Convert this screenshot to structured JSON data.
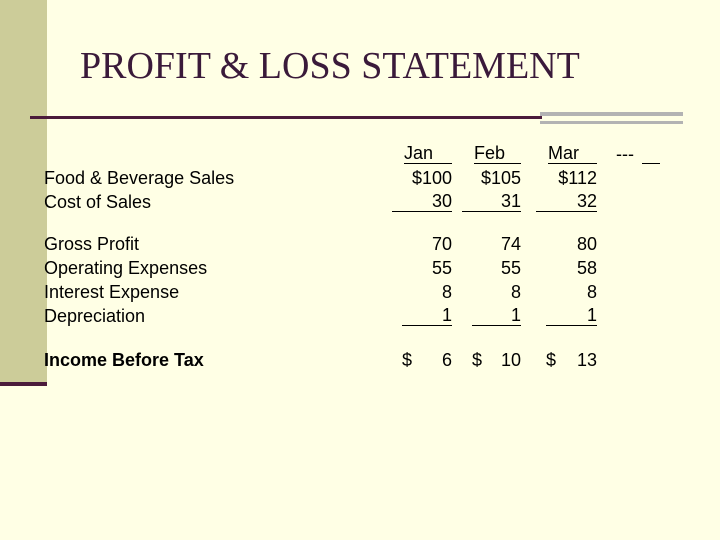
{
  "header": {
    "title": "PROFIT & LOSS STATEMENT"
  },
  "table": {
    "columns": [
      "Jan",
      "Feb",
      "Mar",
      "---"
    ],
    "rows": [
      {
        "label": "Food & Beverage Sales",
        "cells": [
          "$100",
          "$105",
          "$112"
        ]
      },
      {
        "label": "Cost of Sales",
        "cells": [
          "30",
          "31",
          "32"
        ]
      },
      {
        "label": "Gross Profit",
        "cells": [
          "70",
          "74",
          "80"
        ]
      },
      {
        "label": "Operating Expenses",
        "cells": [
          "55",
          "55",
          "58"
        ]
      },
      {
        "label": "Interest Expense",
        "cells": [
          "8",
          "8",
          "8"
        ]
      },
      {
        "label": "Depreciation",
        "cells": [
          "1",
          "1",
          "1"
        ]
      },
      {
        "label": "Income Before Tax",
        "cells": [
          {
            "currency": "$",
            "amount": "6"
          },
          {
            "currency": "$",
            "amount": "10"
          },
          {
            "currency": "$",
            "amount": "13"
          }
        ]
      }
    ]
  }
}
